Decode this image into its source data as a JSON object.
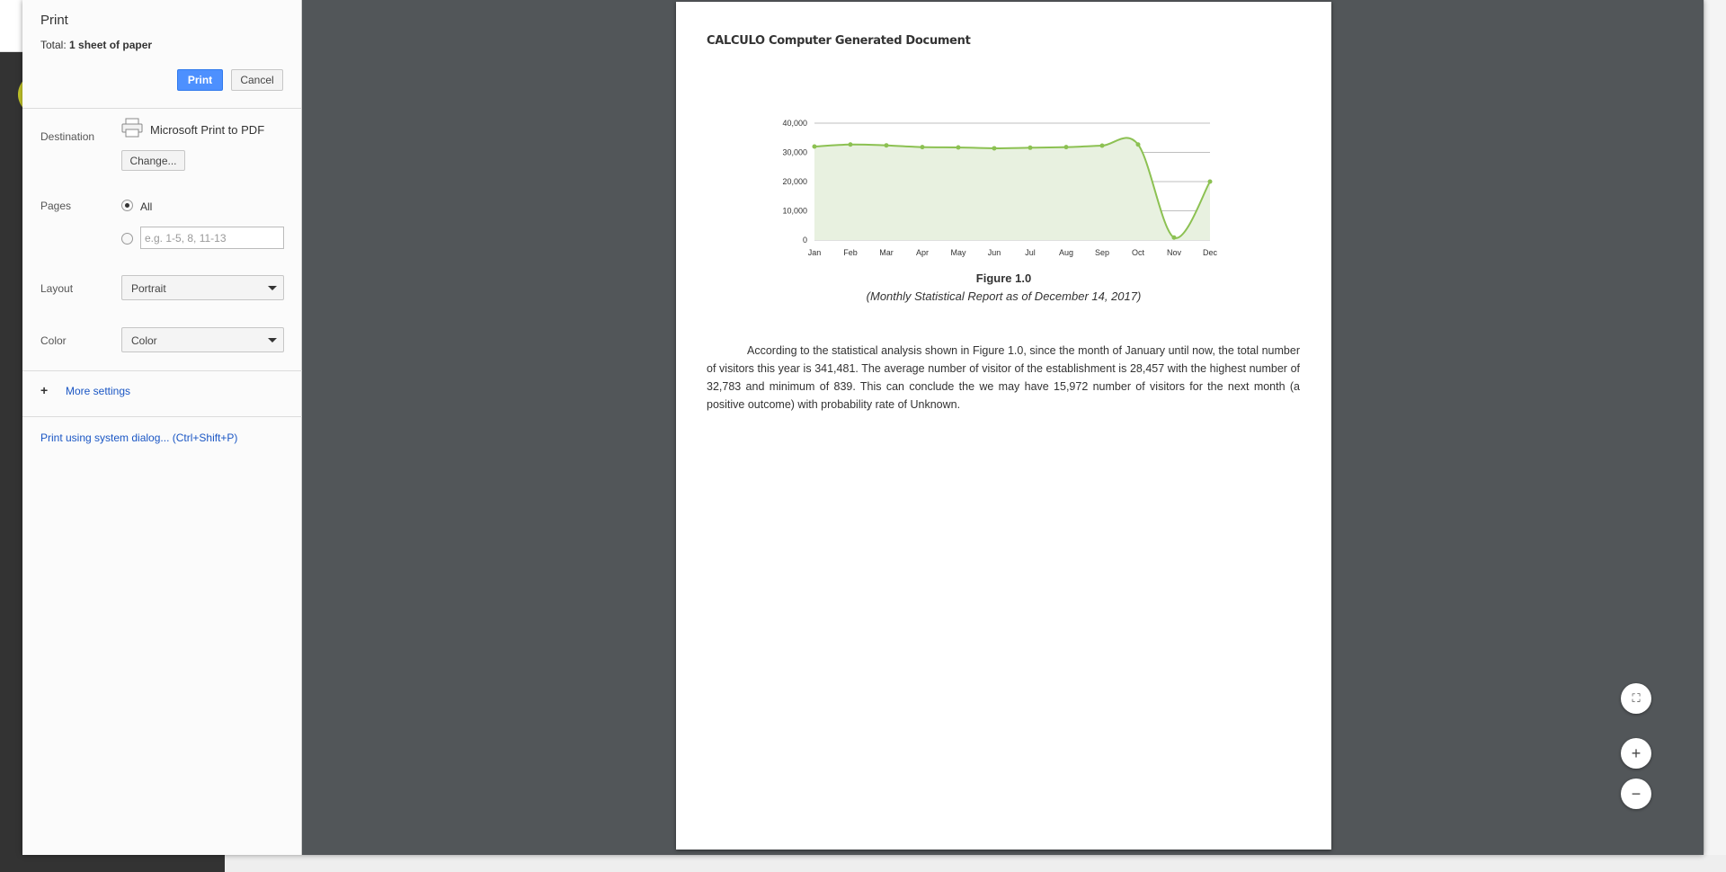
{
  "dialog": {
    "title": "Print",
    "total_prefix": "Total: ",
    "total_value": "1 sheet of paper",
    "print_label": "Print",
    "cancel_label": "Cancel"
  },
  "destination": {
    "label": "Destination",
    "name": "Microsoft Print to PDF",
    "change_label": "Change..."
  },
  "pages": {
    "label": "Pages",
    "all_label": "All",
    "custom_placeholder": "e.g. 1-5, 8, 11-13"
  },
  "layout": {
    "label": "Layout",
    "value": "Portrait"
  },
  "color": {
    "label": "Color",
    "value": "Color"
  },
  "more_settings_label": "More settings",
  "system_dialog_label": "Print using system dialog... (Ctrl+Shift+P)",
  "document": {
    "title": "CALCULO Computer Generated Document",
    "figure_title": "Figure 1.0",
    "figure_caption": "(Monthly Statistical Report as of December 14, 2017)",
    "paragraph": "According to the statistical analysis shown in Figure 1.0, since the month of January until  now, the total number of visitors this year is 341,481. The average number of visitor of the establishment is 28,457 with the highest number of 32,783 and minimum of 839. This can conclude the we may have 15,972 number of visitors for the next month (a positive outcome) with probability rate of Unknown."
  },
  "chart_data": {
    "type": "area",
    "categories": [
      "Jan",
      "Feb",
      "Mar",
      "Apr",
      "May",
      "Jun",
      "Jul",
      "Aug",
      "Sep",
      "Oct",
      "Nov",
      "Dec"
    ],
    "values": [
      32000,
      32700,
      32400,
      31800,
      31700,
      31400,
      31600,
      31800,
      32300,
      32700,
      839,
      20000
    ],
    "yticks": [
      "0",
      "10,000",
      "20,000",
      "30,000",
      "40,000"
    ],
    "ylim": [
      0,
      40000
    ],
    "grid": true,
    "colors": {
      "line": "#8cc152",
      "fill": "#e8f1e0"
    }
  }
}
